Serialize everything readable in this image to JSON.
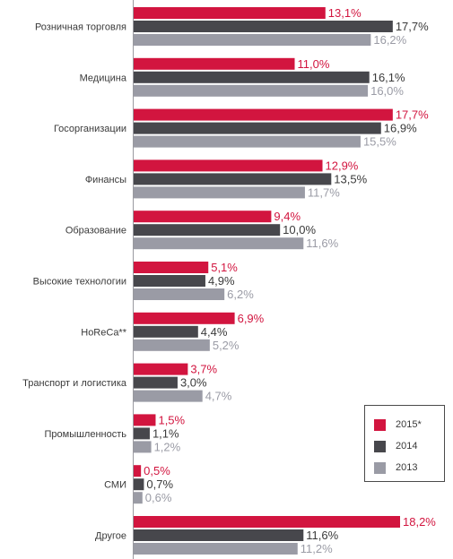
{
  "chart_data": {
    "type": "bar",
    "orientation": "horizontal",
    "categories": [
      "Розничная торговля",
      "Медицина",
      "Госорганизации",
      "Финансы",
      "Образование",
      "Высокие технологии",
      "HoReCa**",
      "Транспорт и логистика",
      "Промышленность",
      "СМИ",
      "Другое"
    ],
    "series": [
      {
        "name": "2015*",
        "color": "#d2153f",
        "values": [
          13.1,
          11.0,
          17.7,
          12.9,
          9.4,
          5.1,
          6.9,
          3.7,
          1.5,
          0.5,
          18.2
        ],
        "labels": [
          "13,1%",
          "11,0%",
          "17,7%",
          "12,9%",
          "9,4%",
          "5,1%",
          "6,9%",
          "3,7%",
          "1,5%",
          "0,5%",
          "18,2%"
        ]
      },
      {
        "name": "2014",
        "color": "#47474c",
        "values": [
          17.7,
          16.1,
          16.9,
          13.5,
          10.0,
          4.9,
          4.4,
          3.0,
          1.1,
          0.7,
          11.6
        ],
        "labels": [
          "17,7%",
          "16,1%",
          "16,9%",
          "13,5%",
          "10,0%",
          "4,9%",
          "4,4%",
          "3,0%",
          "1,1%",
          "0,7%",
          "11,6%"
        ]
      },
      {
        "name": "2013",
        "color": "#9a9ba5",
        "values": [
          16.2,
          16.0,
          15.5,
          11.7,
          11.6,
          6.2,
          5.2,
          4.7,
          1.2,
          0.6,
          11.2
        ],
        "labels": [
          "16,2%",
          "16,0%",
          "15,5%",
          "11,7%",
          "11,6%",
          "6,2%",
          "5,2%",
          "4,7%",
          "1,2%",
          "0,6%",
          "11,2%"
        ]
      }
    ],
    "label_colors": [
      "#d2153f",
      "#3a3a3a",
      "#9a9ba5"
    ],
    "xlim": [
      0,
      18.2
    ],
    "legend_position": "bottom-right",
    "grid": false
  }
}
